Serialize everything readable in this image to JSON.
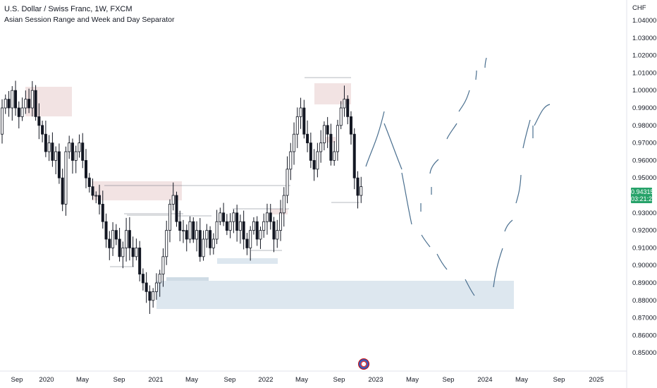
{
  "header": {
    "symbol_line": "U.S. Dollar / Swiss Franc, 1W, FXCM",
    "indicator_line": "Asian Session Range and Week and Day Separator"
  },
  "axis": {
    "currency": "CHF",
    "price_labels": [
      "1.04000",
      "1.03000",
      "1.02000",
      "1.01000",
      "1.00000",
      "0.99000",
      "0.98000",
      "0.97000",
      "0.96000",
      "0.95000",
      "0.93000",
      "0.92000",
      "0.91000",
      "0.90000",
      "0.89000",
      "0.88000",
      "0.87000",
      "0.86000",
      "0.85000"
    ],
    "time_labels": [
      "Sep",
      "2020",
      "May",
      "Sep",
      "2021",
      "May",
      "Sep",
      "2022",
      "May",
      "Sep",
      "2023",
      "May",
      "Sep",
      "2024",
      "May",
      "Sep",
      "2025"
    ]
  },
  "current_price": {
    "value": "0.94315",
    "countdown": "03:21:23",
    "color": "#26a269"
  },
  "colors": {
    "candle": "#131722",
    "projection": "#4a6f8f",
    "zone_red": "#f2e3e3",
    "zone_blue": "#dde7ef",
    "grid": "#f0f3fa"
  },
  "chart_data": {
    "type": "candlestick",
    "title": "U.S. Dollar / Swiss Franc, 1W, FXCM",
    "ylabel": "CHF",
    "ylim": [
      0.84,
      1.05
    ],
    "price_ticks": [
      1.04,
      1.03,
      1.02,
      1.01,
      1.0,
      0.99,
      0.98,
      0.97,
      0.96,
      0.95,
      0.93,
      0.92,
      0.91,
      0.9,
      0.89,
      0.88,
      0.87,
      0.86,
      0.85
    ],
    "x_ticks": [
      "Sep",
      "2020",
      "May",
      "Sep",
      "2021",
      "May",
      "Sep",
      "2022",
      "May",
      "Sep",
      "2023",
      "May",
      "Sep",
      "2024",
      "May",
      "Sep",
      "2025"
    ],
    "path": [
      0.975,
      0.99,
      0.995,
      0.99,
      1.0,
      0.99,
      0.985,
      0.99,
      0.995,
      0.99,
      1.0,
      0.985,
      0.98,
      0.975,
      0.965,
      0.97,
      0.96,
      0.965,
      0.95,
      0.935,
      0.965,
      0.97,
      0.96,
      0.965,
      0.97,
      0.96,
      0.95,
      0.945,
      0.94,
      0.94,
      0.935,
      0.925,
      0.915,
      0.91,
      0.92,
      0.915,
      0.905,
      0.91,
      0.92,
      0.91,
      0.905,
      0.91,
      0.895,
      0.89,
      0.885,
      0.88,
      0.885,
      0.89,
      0.895,
      0.905,
      0.92,
      0.935,
      0.94,
      0.925,
      0.92,
      0.92,
      0.915,
      0.925,
      0.915,
      0.92,
      0.905,
      0.915,
      0.92,
      0.91,
      0.915,
      0.925,
      0.93,
      0.925,
      0.92,
      0.925,
      0.93,
      0.92,
      0.925,
      0.915,
      0.91,
      0.92,
      0.925,
      0.915,
      0.92,
      0.925,
      0.93,
      0.925,
      0.915,
      0.92,
      0.93,
      0.94,
      0.955,
      0.965,
      0.975,
      0.985,
      0.99,
      0.975,
      0.97,
      0.96,
      0.955,
      0.965,
      0.97,
      0.98,
      0.975,
      0.96,
      0.965,
      0.98,
      0.99,
      0.995,
      0.985,
      0.975,
      0.95,
      0.94,
      0.945
    ],
    "projection_points": [
      [
        0.968,
        0.975
      ],
      [
        0.98,
        0.985
      ],
      [
        0.99,
        0.982
      ],
      [
        0.975,
        0.96
      ],
      [
        0.955,
        0.94
      ],
      [
        0.925,
        0.918
      ],
      [
        0.912,
        0.905
      ],
      [
        0.9,
        0.895
      ],
      [
        0.888,
        0.883
      ],
      [
        0.89,
        0.9
      ],
      [
        0.908,
        0.915
      ],
      [
        0.925,
        0.935
      ],
      [
        0.945,
        0.952
      ],
      [
        0.965,
        0.975
      ],
      [
        0.98,
        0.985
      ],
      [
        0.99,
        0.993
      ],
      [
        1.005,
        1.012
      ],
      [
        1.02,
        1.02
      ]
    ]
  }
}
